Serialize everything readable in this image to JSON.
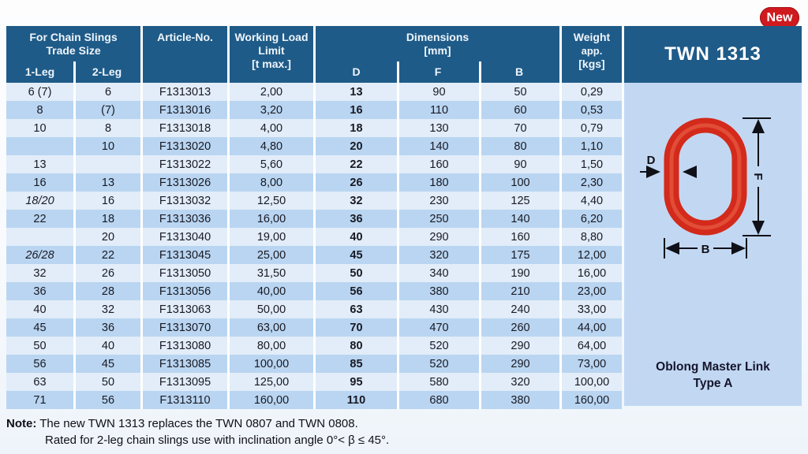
{
  "badge": {
    "label": "New",
    "color": "#cf1a1f"
  },
  "table": {
    "header": {
      "trade_title_1": "For Chain Slings",
      "trade_title_2": "Trade Size",
      "leg1": "1-Leg",
      "leg2": "2-Leg",
      "article": "Article-No.",
      "wll_1": "Working Load",
      "wll_2": "Limit",
      "wll_3": "[t max.]",
      "dims_1": "Dimensions",
      "dims_2": "[mm]",
      "dim_d": "D",
      "dim_f": "F",
      "dim_b": "B",
      "weight_1": "Weight",
      "weight_2": "app.",
      "weight_3": "[kgs]"
    },
    "italic_trade_sizes": [
      "18/20",
      "26/28"
    ],
    "rows": [
      [
        "6 (7)",
        "6",
        "F1313013",
        "2,00",
        "13",
        "90",
        "50",
        "0,29"
      ],
      [
        "8",
        "(7)",
        "F1313016",
        "3,20",
        "16",
        "110",
        "60",
        "0,53"
      ],
      [
        "10",
        "8",
        "F1313018",
        "4,00",
        "18",
        "130",
        "70",
        "0,79"
      ],
      [
        "",
        "10",
        "F1313020",
        "4,80",
        "20",
        "140",
        "80",
        "1,10"
      ],
      [
        "13",
        "",
        "F1313022",
        "5,60",
        "22",
        "160",
        "90",
        "1,50"
      ],
      [
        "16",
        "13",
        "F1313026",
        "8,00",
        "26",
        "180",
        "100",
        "2,30"
      ],
      [
        "18/20",
        "16",
        "F1313032",
        "12,50",
        "32",
        "230",
        "125",
        "4,40"
      ],
      [
        "22",
        "18",
        "F1313036",
        "16,00",
        "36",
        "250",
        "140",
        "6,20"
      ],
      [
        "",
        "20",
        "F1313040",
        "19,00",
        "40",
        "290",
        "160",
        "8,80"
      ],
      [
        "26/28",
        "22",
        "F1313045",
        "25,00",
        "45",
        "320",
        "175",
        "12,00"
      ],
      [
        "32",
        "26",
        "F1313050",
        "31,50",
        "50",
        "340",
        "190",
        "16,00"
      ],
      [
        "36",
        "28",
        "F1313056",
        "40,00",
        "56",
        "380",
        "210",
        "23,00"
      ],
      [
        "40",
        "32",
        "F1313063",
        "50,00",
        "63",
        "430",
        "240",
        "33,00"
      ],
      [
        "45",
        "36",
        "F1313070",
        "63,00",
        "70",
        "470",
        "260",
        "44,00"
      ],
      [
        "50",
        "40",
        "F1313080",
        "80,00",
        "80",
        "520",
        "290",
        "64,00"
      ],
      [
        "56",
        "45",
        "F1313085",
        "100,00",
        "85",
        "520",
        "290",
        "73,00"
      ],
      [
        "63",
        "50",
        "F1313095",
        "125,00",
        "95",
        "580",
        "320",
        "100,00"
      ],
      [
        "71",
        "56",
        "F1313110",
        "160,00",
        "110",
        "680",
        "380",
        "160,00"
      ]
    ]
  },
  "panel": {
    "title": "TWN 1313",
    "caption_1": "Oblong Master Link",
    "caption_2": "Type A",
    "dim_d": "D",
    "dim_f": "F",
    "dim_b": "B",
    "link_color": "#d32a1b"
  },
  "note": {
    "label": "Note:",
    "line1": " The new TWN 1313 replaces the TWN 0807 and TWN 0808.",
    "line2": "Rated for 2-leg chain slings use with inclination angle 0°< β ≤ 45°."
  },
  "colors": {
    "header_blue": "#1f5b88",
    "row_light": "#e2edf9",
    "row_dark": "#b9d5f1",
    "panel_body": "#c2d8f2",
    "badge_red": "#cf1a1f",
    "link_red": "#d32a1b"
  }
}
